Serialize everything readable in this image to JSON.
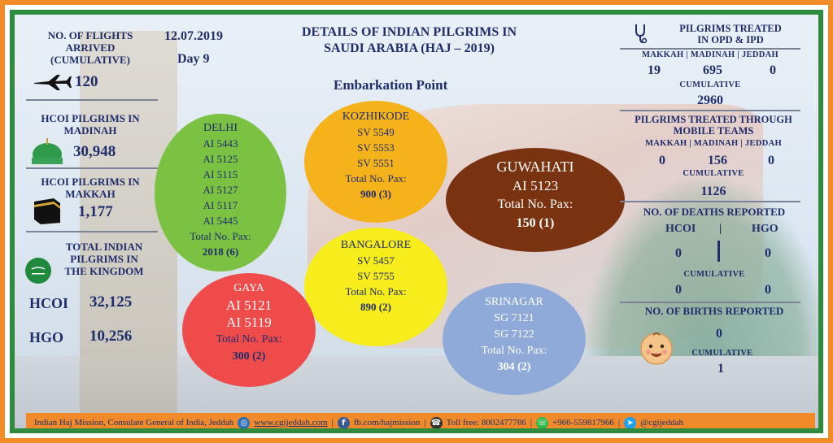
{
  "header": {
    "date": "12.07.2019",
    "day": "Day 9",
    "title_line1": "DETAILS OF INDIAN PILGRIMS IN",
    "title_line2": "SAUDI ARABIA (HAJ – 2019)",
    "embarkation": "Embarkation Point"
  },
  "left": {
    "flights_label_1": "NO. OF FLIGHTS",
    "flights_label_2": "ARRIVED",
    "flights_label_3": "(CUMULATIVE)",
    "flights_value": "120",
    "madinah_label_1": "HCOI PILGRIMS IN",
    "madinah_label_2": "MADINAH",
    "madinah_value": "30,948",
    "makkah_label_1": "HCOI PILGRIMS IN",
    "makkah_label_2": "MAKKAH",
    "makkah_value": "1,177",
    "total_label_1": "TOTAL INDIAN",
    "total_label_2": "PILGRIMS IN",
    "total_label_3": "THE KINGDOM",
    "hcoi_label": "HCOI",
    "hcoi_value": "32,125",
    "hgo_label": "HGO",
    "hgo_value": "10,256"
  },
  "embarkation_points": {
    "delhi": {
      "city": "DELHI",
      "flights": [
        "AI 5443",
        "AI 5125",
        "AI 5115",
        "AI 5127",
        "AI 5117",
        "AI 5445"
      ],
      "pax_label": "Total No. Pax:",
      "pax": "2018 (6)",
      "color": "#7cc242"
    },
    "kozhikode": {
      "city": "KOZHIKODE",
      "flights": [
        "SV 5549",
        "SV 5553",
        "SV 5551"
      ],
      "pax_label": "Total No. Pax:",
      "pax": "900 (3)",
      "color": "#f5b21b"
    },
    "guwahati": {
      "city": "GUWAHATI",
      "flights": [
        "AI 5123"
      ],
      "pax_label": "Total No. Pax:",
      "pax": "150 (1)",
      "color": "#7a3310"
    },
    "bangalore": {
      "city": "BANGALORE",
      "flights": [
        "SV 5457",
        "SV 5755"
      ],
      "pax_label": "Total No. Pax:",
      "pax": "890 (2)",
      "color": "#f7ec1c"
    },
    "gaya": {
      "city": "GAYA",
      "flights": [
        "AI 5121",
        "AI 5119"
      ],
      "pax_label": "Total No. Pax:",
      "pax": "300 (2)",
      "color": "#ef4b4b"
    },
    "srinagar": {
      "city": "SRINAGAR",
      "flights": [
        "SG 7121",
        "SG 7122"
      ],
      "pax_label": "Total No. Pax:",
      "pax": "304 (2)",
      "color": "#8fa9d9"
    }
  },
  "right": {
    "opd_title_1": "PILGRIMS TREATED",
    "opd_title_2": "IN OPD & IPD",
    "cities": "MAKKAH | MADINAH | JEDDAH",
    "opd_makkah": "19",
    "opd_madinah": "695",
    "opd_jeddah": "0",
    "cumulative": "CUMULATIVE",
    "opd_cumulative": "2960",
    "mobile_title_1": "PILGRIMS TREATED THROUGH",
    "mobile_title_2": "MOBILE TEAMS",
    "mobile_makkah": "0",
    "mobile_madinah": "156",
    "mobile_jeddah": "0",
    "mobile_cumulative": "1126",
    "deaths_title": "NO. OF DEATHS REPORTED",
    "deaths_hcoi_label": "HCOI",
    "deaths_pipe": "|",
    "deaths_hgo_label": "HGO",
    "deaths_hcoi": "0",
    "deaths_hgo": "0",
    "deaths_cum_hcoi": "0",
    "deaths_cum_hgo": "0",
    "births_title": "NO. OF BIRTHS REPORTED",
    "births_value": "0",
    "births_cumulative": "1"
  },
  "footer": {
    "mission": "Indian Haj Mission, Consulate General of India, Jeddah",
    "website": "www.cgijeddah.com",
    "facebook": "fb.com/hajmission",
    "tollfree": "Toll free: 8002477786",
    "whatsapp": "+966-559817966",
    "twitter": "@cgijeddah",
    "pipe": "|"
  },
  "colors": {
    "navy": "#1f2d6b",
    "orange": "#f28c28",
    "green": "#2e8b3e"
  }
}
